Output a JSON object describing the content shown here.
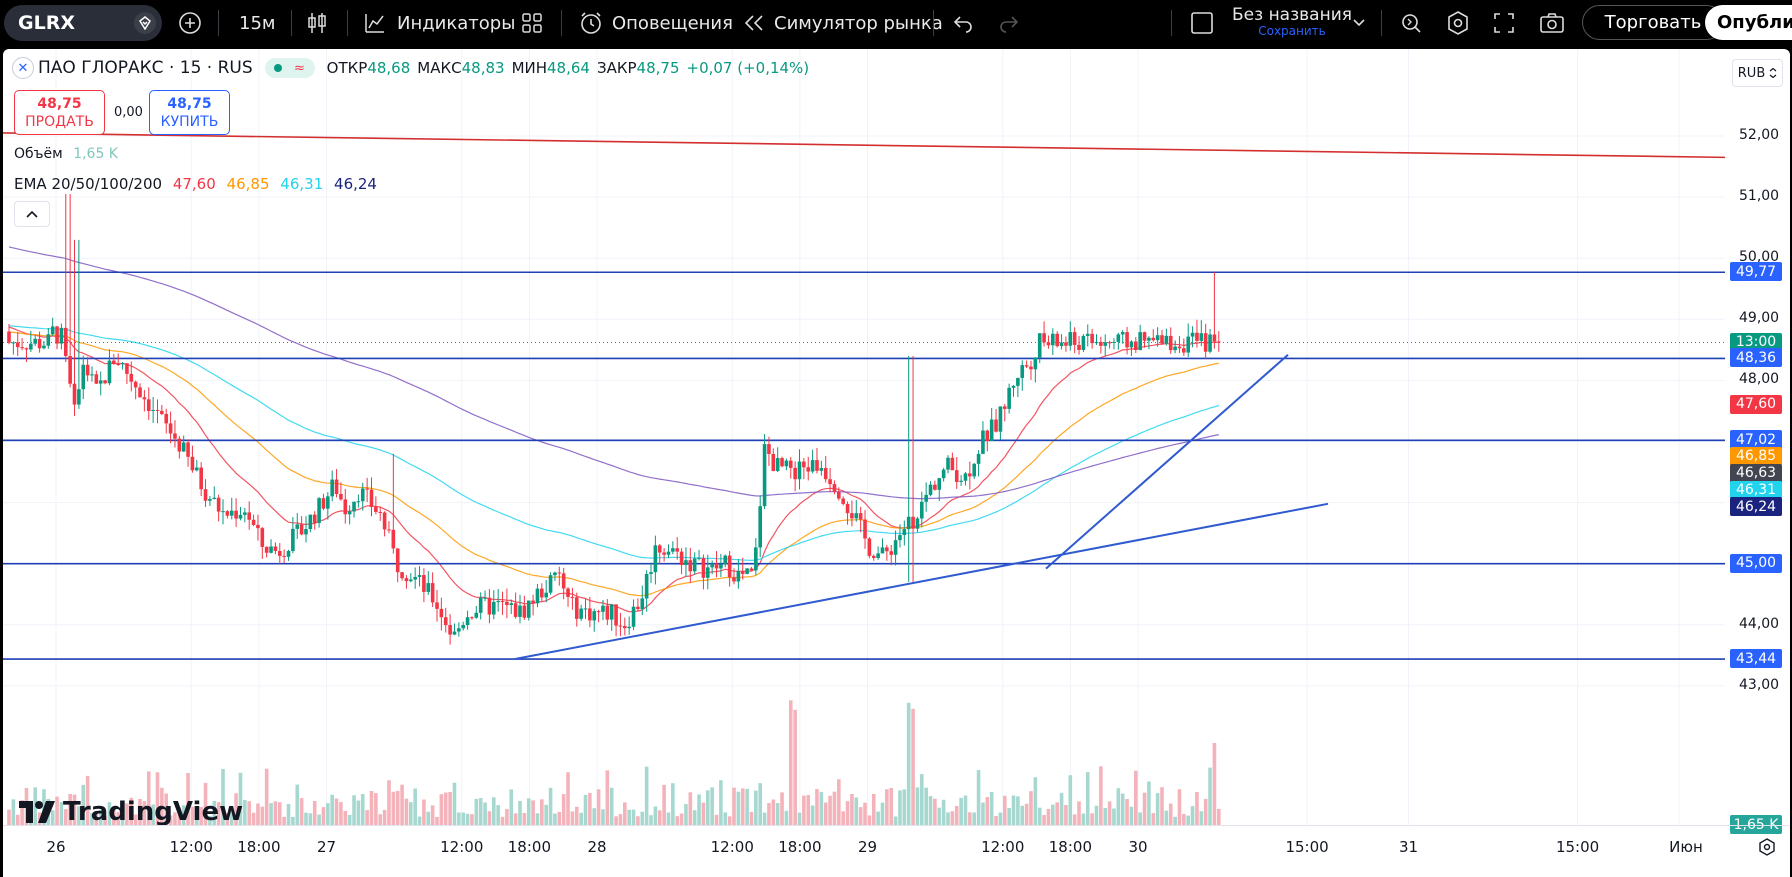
{
  "toolbar": {
    "symbol": "GLRX",
    "interval": "15м",
    "indicators_label": "Индикаторы",
    "alerts_label": "Оповещения",
    "replay_label": "Симулятор рынка",
    "layout_name": "Без названия",
    "save_label": "Сохранить",
    "trade_label": "Торговать",
    "publish_label": "Опубликовать",
    "icons": [
      "symbol-search-icon",
      "add-symbol-icon",
      "candles-icon",
      "indicators-icon",
      "templates-icon",
      "alert-icon",
      "replay-icon",
      "undo-icon",
      "redo-icon",
      "layout-icon",
      "chevron-down-icon",
      "quick-search-icon",
      "settings-icon",
      "fullscreen-icon",
      "snapshot-icon"
    ]
  },
  "legend": {
    "title": "ПАО ГЛОРАКС · 15 · RUS",
    "open_key": "ОТКР",
    "open": "48,68",
    "high_key": "МАКС",
    "high": "48,83",
    "low_key": "МИН",
    "low": "48,64",
    "close_key": "ЗАКР",
    "close": "48,75",
    "change": "+0,07 (+0,14%)",
    "sell_price": "48,75",
    "sell_label": "ПРОДАТЬ",
    "spread": "0,00",
    "buy_price": "48,75",
    "buy_label": "КУПИТЬ",
    "volume_label": "Объём",
    "volume_value": "1,65 K",
    "ema_label": "EMA 20/50/100/200",
    "ema_values": [
      "47,60",
      "46,85",
      "46,31",
      "46,24"
    ],
    "ema_colors": [
      "#f23645",
      "#ff9800",
      "#22d3ee",
      "#1a237e"
    ]
  },
  "price_axis": {
    "currency": "RUB",
    "labels": [
      "52,00",
      "51,00",
      "50,00",
      "49,00",
      "48,00",
      "44,00",
      "43,00"
    ],
    "label_values": [
      52,
      51,
      50,
      49,
      48,
      44,
      43
    ],
    "badges": [
      {
        "text": "49,77",
        "value": 49.77,
        "color": "#2962ff"
      },
      {
        "text": "13:00",
        "value": 48.62,
        "color": "#089981"
      },
      {
        "text": "48,36",
        "value": 48.36,
        "color": "#2962ff"
      },
      {
        "text": "47,60",
        "value": 47.6,
        "color": "#f23645"
      },
      {
        "text": "47,02",
        "value": 47.02,
        "color": "#2962ff"
      },
      {
        "text": "46,85",
        "value": 46.75,
        "color": "#ff9800"
      },
      {
        "text": "46,63",
        "value": 46.47,
        "color": "#434651"
      },
      {
        "text": "46,31",
        "value": 46.19,
        "color": "#22d3ee"
      },
      {
        "text": "46,24",
        "value": 45.92,
        "color": "#1a237e"
      },
      {
        "text": "45,00",
        "value": 45.0,
        "color": "#2962ff"
      },
      {
        "text": "43,44",
        "value": 43.44,
        "color": "#2962ff"
      }
    ],
    "volume_badge": "1,65 K"
  },
  "time_axis": {
    "labels": [
      "26",
      "12:00",
      "18:00",
      "27",
      "12:00",
      "18:00",
      "28",
      "12:00",
      "18:00",
      "29",
      "12:00",
      "18:00",
      "30",
      "15:00",
      "31",
      "15:00",
      "Июн"
    ]
  },
  "chart_data": {
    "type": "candlestick",
    "symbol": "GLRX",
    "interval": "15",
    "y_range": [
      42.6,
      53.2
    ],
    "horizontal_levels": [
      49.77,
      48.36,
      47.02,
      45.0,
      43.44
    ],
    "resistance_line": {
      "from": 52.05,
      "to": 51.65
    },
    "trend_lines": [
      {
        "from_time": "27 13:30",
        "from": 43.44,
        "to_time": "30 00:30",
        "to": 45.98
      },
      {
        "from_time": "29 10:00",
        "from": 44.92,
        "to_time": "29 22:30",
        "to": 48.42
      }
    ],
    "ema": {
      "ema20": 47.6,
      "ema50": 46.85,
      "ema100": 46.31,
      "ema200": 46.24
    },
    "last_price": 48.75,
    "last_volume": "1,65 K"
  },
  "branding": {
    "logo_text": "TradingView"
  }
}
